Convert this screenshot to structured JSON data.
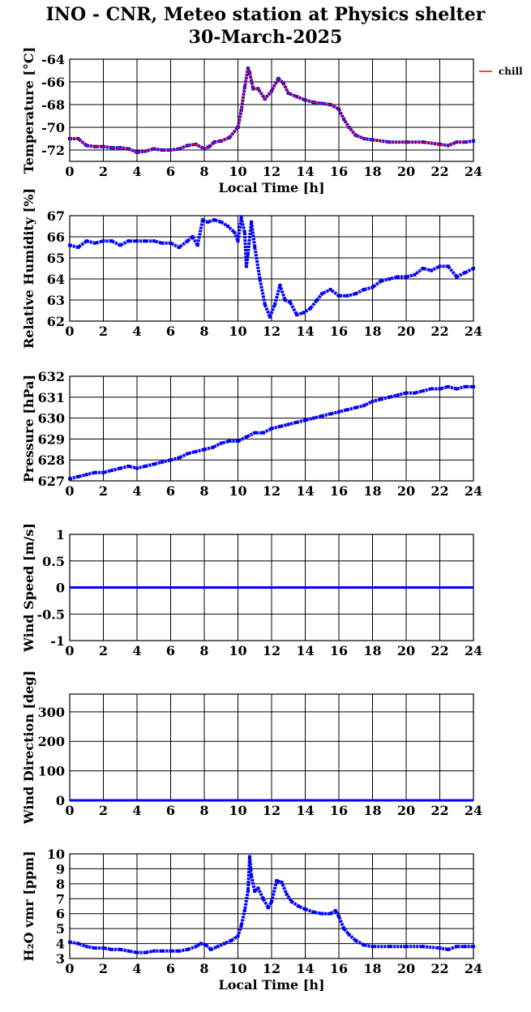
{
  "header": {
    "title": "INO - CNR, Meteo station at Physics shelter",
    "date": "30-March-2025"
  },
  "colors": {
    "series": "#0000ff",
    "chill": "#ff0000",
    "grid": "#000000"
  },
  "chart_data": [
    {
      "id": "temperature",
      "type": "scatter",
      "ylabel": "Temperature [°C]",
      "xlabel": "Local Time [h]",
      "xlim": [
        0,
        24
      ],
      "ylim": [
        -73,
        -64
      ],
      "xticks": [
        "0",
        "2",
        "4",
        "6",
        "8",
        "10",
        "12",
        "14",
        "16",
        "18",
        "20",
        "22",
        "24"
      ],
      "yticks": [
        "-72",
        "-70",
        "-68",
        "-66",
        "-64"
      ],
      "legend": [
        "chill"
      ],
      "series": [
        {
          "name": "",
          "color": "#0000ff",
          "x": [
            0,
            0.5,
            1,
            1.5,
            2,
            2.5,
            3,
            3.5,
            4,
            4.5,
            5,
            5.5,
            6,
            6.5,
            7,
            7.5,
            8,
            8.3,
            8.6,
            9,
            9.5,
            10,
            10.2,
            10.4,
            10.6,
            10.7,
            10.9,
            11.2,
            11.6,
            12,
            12.4,
            12.7,
            13,
            13.5,
            14,
            14.5,
            15,
            15.5,
            16,
            16.3,
            16.6,
            17,
            17.5,
            18,
            19,
            20,
            21,
            22,
            22.5,
            23,
            23.5,
            24
          ],
          "y": [
            -71,
            -71,
            -71.6,
            -71.7,
            -71.7,
            -71.8,
            -71.8,
            -71.9,
            -72.2,
            -72.1,
            -71.9,
            -72,
            -72,
            -71.9,
            -71.6,
            -71.5,
            -71.9,
            -71.7,
            -71.3,
            -71.2,
            -70.9,
            -70,
            -68.5,
            -66.5,
            -64.8,
            -65.2,
            -66.6,
            -66.6,
            -67.5,
            -66.8,
            -65.7,
            -66.1,
            -67,
            -67.3,
            -67.6,
            -67.8,
            -67.9,
            -68,
            -68.4,
            -69.3,
            -70,
            -70.7,
            -71,
            -71.1,
            -71.3,
            -71.3,
            -71.3,
            -71.5,
            -71.6,
            -71.3,
            -71.3,
            -71.2
          ]
        },
        {
          "name": "chill",
          "color": "#ff0000",
          "x": [
            0,
            0.5,
            1,
            1.5,
            2,
            2.5,
            3,
            3.5,
            4,
            4.5,
            5,
            5.5,
            6,
            6.5,
            7,
            7.5,
            8,
            8.3,
            8.6,
            9,
            9.5,
            10,
            10.2,
            10.4,
            10.6,
            10.7,
            10.9,
            11.2,
            11.6,
            12,
            12.4,
            12.7,
            13,
            13.5,
            14,
            14.5,
            15,
            15.5,
            16,
            16.3,
            16.6,
            17,
            17.5,
            18,
            19,
            20,
            21,
            22,
            22.5,
            23,
            23.5,
            24
          ],
          "y": [
            -71,
            -71,
            -71.6,
            -71.7,
            -71.7,
            -71.8,
            -71.8,
            -71.9,
            -72.2,
            -72.1,
            -71.9,
            -72,
            -72,
            -71.9,
            -71.6,
            -71.5,
            -71.9,
            -71.7,
            -71.3,
            -71.2,
            -70.9,
            -70,
            -68.5,
            -66.5,
            -64.8,
            -65.2,
            -66.6,
            -66.6,
            -67.5,
            -66.8,
            -65.7,
            -66.1,
            -67,
            -67.3,
            -67.6,
            -67.8,
            -67.9,
            -68,
            -68.4,
            -69.3,
            -70,
            -70.7,
            -71,
            -71.1,
            -71.3,
            -71.3,
            -71.3,
            -71.5,
            -71.6,
            -71.3,
            -71.3,
            -71.2
          ]
        }
      ]
    },
    {
      "id": "humidity",
      "type": "scatter",
      "ylabel": "Relative Humidity [%]",
      "xlim": [
        0,
        24
      ],
      "ylim": [
        62,
        67
      ],
      "xticks": [
        "0",
        "2",
        "4",
        "6",
        "8",
        "10",
        "12",
        "14",
        "16",
        "18",
        "20",
        "22",
        "24"
      ],
      "yticks": [
        "62",
        "63",
        "64",
        "65",
        "66",
        "67"
      ],
      "series": [
        {
          "name": "",
          "color": "#0000ff",
          "x": [
            0,
            0.5,
            1,
            1.5,
            2,
            2.5,
            3,
            3.5,
            4,
            4.5,
            5,
            5.5,
            6,
            6.5,
            7,
            7.3,
            7.6,
            7.9,
            8.2,
            8.6,
            9,
            9.4,
            9.8,
            10,
            10.2,
            10.4,
            10.5,
            10.6,
            10.8,
            11,
            11.3,
            11.6,
            11.9,
            12.2,
            12.5,
            12.8,
            13.1,
            13.5,
            13.9,
            14.3,
            14.7,
            15,
            15.5,
            16,
            16.5,
            17,
            17.5,
            18,
            18.5,
            19,
            19.5,
            20,
            20.5,
            21,
            21.5,
            22,
            22.5,
            23,
            23.5,
            24
          ],
          "y": [
            65.6,
            65.5,
            65.8,
            65.7,
            65.8,
            65.8,
            65.6,
            65.8,
            65.8,
            65.8,
            65.8,
            65.7,
            65.7,
            65.5,
            65.8,
            66,
            65.6,
            66.8,
            66.7,
            66.8,
            66.7,
            66.5,
            66.2,
            65.8,
            66.9,
            66.2,
            64.6,
            65.2,
            66.7,
            65.5,
            64,
            62.8,
            62.2,
            62.8,
            63.7,
            63,
            62.9,
            62.3,
            62.4,
            62.6,
            63,
            63.3,
            63.5,
            63.2,
            63.2,
            63.3,
            63.5,
            63.6,
            63.9,
            64,
            64.1,
            64.1,
            64.2,
            64.5,
            64.4,
            64.6,
            64.6,
            64.1,
            64.3,
            64.5
          ]
        }
      ]
    },
    {
      "id": "pressure",
      "type": "scatter",
      "ylabel": "Pressure [hPa]",
      "xlim": [
        0,
        24
      ],
      "ylim": [
        627,
        632
      ],
      "xticks": [
        "0",
        "2",
        "4",
        "6",
        "8",
        "10",
        "12",
        "14",
        "16",
        "18",
        "20",
        "22",
        "24"
      ],
      "yticks": [
        "627",
        "628",
        "629",
        "630",
        "631",
        "632"
      ],
      "series": [
        {
          "name": "",
          "color": "#0000ff",
          "x": [
            0,
            0.5,
            1,
            1.5,
            2,
            2.5,
            3,
            3.5,
            4,
            4.5,
            5,
            5.5,
            6,
            6.5,
            7,
            7.5,
            8,
            8.5,
            9,
            9.5,
            10,
            10.5,
            11,
            11.5,
            12,
            12.5,
            13,
            13.5,
            14,
            14.5,
            15,
            15.5,
            16,
            16.5,
            17,
            17.5,
            18,
            18.5,
            19,
            19.5,
            20,
            20.5,
            21,
            21.5,
            22,
            22.5,
            23,
            23.5,
            24
          ],
          "y": [
            627.1,
            627.2,
            627.3,
            627.4,
            627.4,
            627.5,
            627.6,
            627.7,
            627.6,
            627.7,
            627.8,
            627.9,
            628,
            628.1,
            628.3,
            628.4,
            628.5,
            628.6,
            628.8,
            628.9,
            628.9,
            629.1,
            629.3,
            629.3,
            629.5,
            629.6,
            629.7,
            629.8,
            629.9,
            630,
            630.1,
            630.2,
            630.3,
            630.4,
            630.5,
            630.6,
            630.8,
            630.9,
            631,
            631.1,
            631.2,
            631.2,
            631.3,
            631.4,
            631.4,
            631.5,
            631.4,
            631.5,
            631.5
          ]
        }
      ]
    },
    {
      "id": "windspeed",
      "type": "line",
      "ylabel": "Wind Speed [m/s]",
      "xlim": [
        0,
        24
      ],
      "ylim": [
        -1,
        1
      ],
      "xticks": [
        "0",
        "2",
        "4",
        "6",
        "8",
        "10",
        "12",
        "14",
        "16",
        "18",
        "20",
        "22",
        "24"
      ],
      "yticks": [
        "-1",
        "-0.5",
        "0",
        "0.5",
        "1"
      ],
      "series": [
        {
          "name": "",
          "color": "#0000ff",
          "x": [
            0,
            24
          ],
          "y": [
            0,
            0
          ]
        }
      ]
    },
    {
      "id": "winddir",
      "type": "line",
      "ylabel": "Wind Direction [deg]",
      "xlim": [
        0,
        24
      ],
      "ylim": [
        0,
        360
      ],
      "xticks": [
        "0",
        "2",
        "4",
        "6",
        "8",
        "10",
        "12",
        "14",
        "16",
        "18",
        "20",
        "22",
        "24"
      ],
      "yticks": [
        "0",
        "100",
        "200",
        "300"
      ],
      "series": [
        {
          "name": "",
          "color": "#0000ff",
          "x": [
            0,
            24
          ],
          "y": [
            0,
            0
          ]
        }
      ]
    },
    {
      "id": "h2o",
      "type": "scatter",
      "ylabel": "H₂O vmr [ppm]",
      "xlabel": "Local Time [h]",
      "xlim": [
        0,
        24
      ],
      "ylim": [
        3,
        10
      ],
      "xticks": [
        "0",
        "2",
        "4",
        "6",
        "8",
        "10",
        "12",
        "14",
        "16",
        "18",
        "20",
        "22",
        "24"
      ],
      "yticks": [
        "3",
        "4",
        "5",
        "6",
        "7",
        "8",
        "9",
        "10"
      ],
      "series": [
        {
          "name": "",
          "color": "#0000ff",
          "x": [
            0,
            0.5,
            1,
            1.5,
            2,
            2.5,
            3,
            3.5,
            4,
            4.5,
            5,
            5.5,
            6,
            6.5,
            7,
            7.5,
            7.8,
            8.1,
            8.4,
            8.8,
            9.2,
            9.6,
            10,
            10.2,
            10.4,
            10.6,
            10.7,
            10.8,
            11,
            11.2,
            11.5,
            11.8,
            12,
            12.3,
            12.6,
            12.9,
            13.2,
            13.6,
            14,
            14.5,
            15,
            15.5,
            15.8,
            16,
            16.3,
            16.6,
            17,
            17.5,
            18,
            19,
            20,
            21,
            22,
            22.5,
            23,
            23.5,
            24
          ],
          "y": [
            4.1,
            4,
            3.8,
            3.7,
            3.7,
            3.6,
            3.6,
            3.5,
            3.4,
            3.4,
            3.5,
            3.5,
            3.5,
            3.5,
            3.6,
            3.8,
            4,
            3.9,
            3.6,
            3.8,
            4,
            4.2,
            4.5,
            5.2,
            6.2,
            7.5,
            9.8,
            8.5,
            7.5,
            7.7,
            7,
            6.4,
            6.8,
            8.2,
            8.1,
            7.3,
            6.8,
            6.5,
            6.3,
            6.1,
            6,
            6,
            6.2,
            5.8,
            5,
            4.6,
            4.2,
            3.9,
            3.8,
            3.8,
            3.8,
            3.8,
            3.7,
            3.6,
            3.8,
            3.8,
            3.8
          ]
        }
      ]
    }
  ]
}
